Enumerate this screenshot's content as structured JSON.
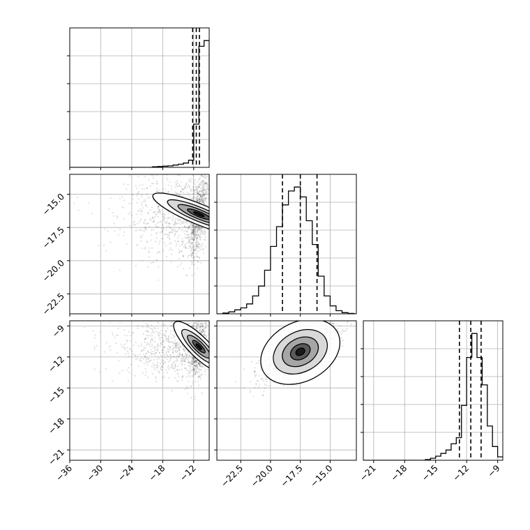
{
  "chart_data": {
    "type": "corner",
    "params": [
      {
        "xlim": [
          -36,
          -9
        ],
        "ylim": [
          -24,
          -8.2
        ],
        "ticks": [
          -36,
          -30,
          -24,
          -18,
          -12
        ],
        "tick_labels": [
          "−36",
          "−30",
          "−24",
          "−18",
          "−12"
        ],
        "quantiles": [
          -12.2,
          -11.5,
          -10.9
        ]
      },
      {
        "xlim": [
          -24.5,
          -12.8
        ],
        "ticks": [
          -22.5,
          -20.0,
          -17.5,
          -15.0
        ],
        "tick_labels": [
          "−22.5",
          "−20.0",
          "−17.5",
          "−15.0"
        ],
        "quantiles": [
          -19.0,
          -17.5,
          -16.1
        ]
      },
      {
        "xlim": [
          -22,
          -8.5
        ],
        "ticks": [
          -21,
          -18,
          -15,
          -12,
          -9
        ],
        "tick_labels": [
          "−21",
          "−18",
          "−15",
          "−12",
          "−9"
        ],
        "quantiles": [
          -12.7,
          -11.6,
          -10.6
        ]
      }
    ],
    "histograms": [
      {
        "bin_edges": [
          -36.0,
          -35.0,
          -34.0,
          -33.0,
          -32.0,
          -31.0,
          -30.0,
          -29.0,
          -28.0,
          -27.0,
          -26.0,
          -25.0,
          -24.0,
          -23.0,
          -22.0,
          -21.0,
          -20.0,
          -19.0,
          -18.0,
          -17.0,
          -16.0,
          -15.0,
          -14.0,
          -13.0,
          -12.0,
          -11.0,
          -10.0,
          -9.0
        ],
        "counts": [
          0,
          0,
          0,
          0,
          0,
          0,
          0,
          0,
          0,
          0,
          0,
          0,
          0,
          0,
          0,
          0,
          2,
          3,
          4,
          5,
          8,
          11,
          15,
          25,
          150,
          420,
          440,
          20
        ]
      },
      {
        "bin_edges": [
          -24.5,
          -24.0,
          -23.5,
          -23.0,
          -22.5,
          -22.0,
          -21.5,
          -21.0,
          -20.5,
          -20.0,
          -19.5,
          -19.0,
          -18.5,
          -18.0,
          -17.5,
          -17.0,
          -16.5,
          -16.0,
          -15.5,
          -15.0,
          -14.5,
          -14.0,
          -13.5,
          -13.0,
          -12.8
        ],
        "counts": [
          0,
          2,
          5,
          10,
          15,
          25,
          45,
          70,
          110,
          170,
          220,
          275,
          310,
          320,
          295,
          235,
          175,
          95,
          45,
          20,
          8,
          3,
          1,
          0
        ]
      },
      {
        "bin_edges": [
          -22.0,
          -21.5,
          -21.0,
          -20.5,
          -20.0,
          -19.5,
          -19.0,
          -18.5,
          -18.0,
          -17.5,
          -17.0,
          -16.5,
          -16.0,
          -15.5,
          -15.0,
          -14.5,
          -14.0,
          -13.5,
          -13.0,
          -12.5,
          -12.0,
          -11.5,
          -11.0,
          -10.5,
          -10.0,
          -9.5,
          -9.0,
          -8.5
        ],
        "counts": [
          0,
          0,
          0,
          0,
          0,
          0,
          0,
          0,
          0,
          0,
          0,
          0,
          1,
          3,
          6,
          10,
          15,
          24,
          33,
          80,
          150,
          185,
          150,
          110,
          50,
          20,
          5
        ]
      }
    ],
    "ytick_labels": {
      "row1": [
        "−15.0",
        "−17.5",
        "−20.0",
        "−22.5"
      ],
      "row2": [
        "−9",
        "−12",
        "−15",
        "−18",
        "−21"
      ]
    },
    "scatter_2d": [
      {
        "pair": "p1-p2",
        "mode_x": -11.0,
        "mode_y": -16.5,
        "sd_x": 0.9,
        "sd_y": 1.7,
        "rho": 0.5
      },
      {
        "pair": "p1-p3",
        "mode_x": -11.0,
        "mode_y": -11.0,
        "sd_x": 0.9,
        "sd_y": 1.5,
        "rho": 0.3
      },
      {
        "pair": "p2-p3",
        "mode_x": -17.5,
        "mode_y": -11.5,
        "sd_x": 1.6,
        "sd_y": 1.3,
        "rho": 0.75
      }
    ],
    "grid": true,
    "line_color": "#000000",
    "density_color": "#000000",
    "grid_color": "#b0b0b0"
  }
}
